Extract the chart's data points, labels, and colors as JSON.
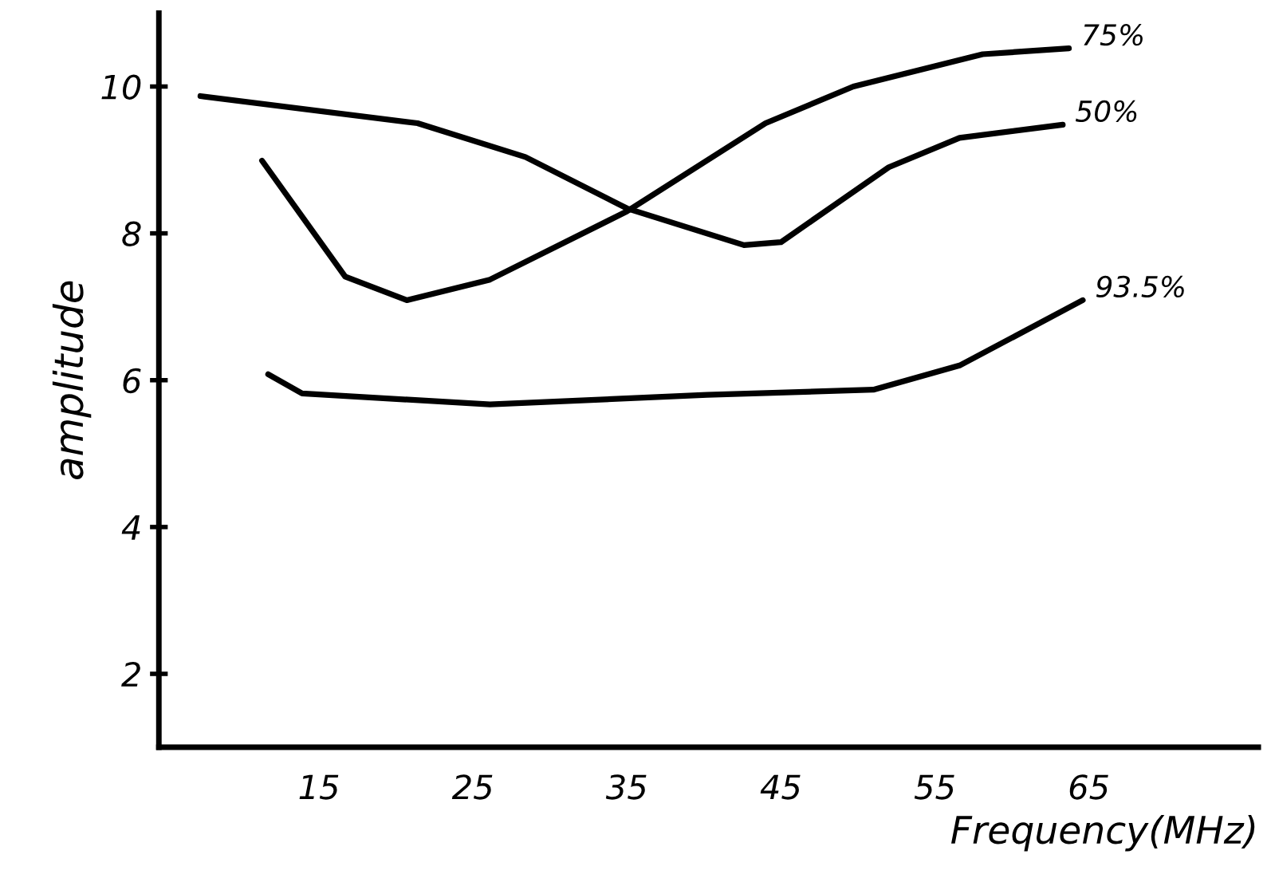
{
  "chart_data": {
    "type": "line",
    "xlabel": "Frequency(MHz)",
    "ylabel": "amplitude",
    "xlim": [
      4.6,
      76
    ],
    "xticks": [
      15,
      25,
      35,
      45,
      55,
      65
    ],
    "ylim": [
      1,
      11
    ],
    "yticks": [
      2,
      4,
      6,
      8,
      10
    ],
    "grid": false,
    "legend": false,
    "marker": "none",
    "line_style": "solid",
    "series": [
      {
        "name": "75%",
        "color": "#000000",
        "x": [
          11.3,
          16.7,
          20.7,
          26.1,
          35,
          44,
          49.7,
          58.1,
          63.7
        ],
        "values": [
          8.99,
          7.41,
          7.09,
          7.37,
          8.3,
          9.5,
          10,
          10.44,
          10.52
        ]
      },
      {
        "name": "50%",
        "color": "#000000",
        "x": [
          7.3,
          21.4,
          28.4,
          35,
          42.6,
          45,
          52,
          56.6,
          63.3
        ],
        "values": [
          9.87,
          9.5,
          9.04,
          8.34,
          7.84,
          7.88,
          8.9,
          9.3,
          9.48
        ]
      },
      {
        "name": "93.5%",
        "color": "#000000",
        "x": [
          11.7,
          13.9,
          26.1,
          40.2,
          51,
          56.6,
          64.6
        ],
        "values": [
          6.08,
          5.82,
          5.67,
          5.8,
          5.87,
          6.2,
          7.09
        ]
      }
    ]
  }
}
